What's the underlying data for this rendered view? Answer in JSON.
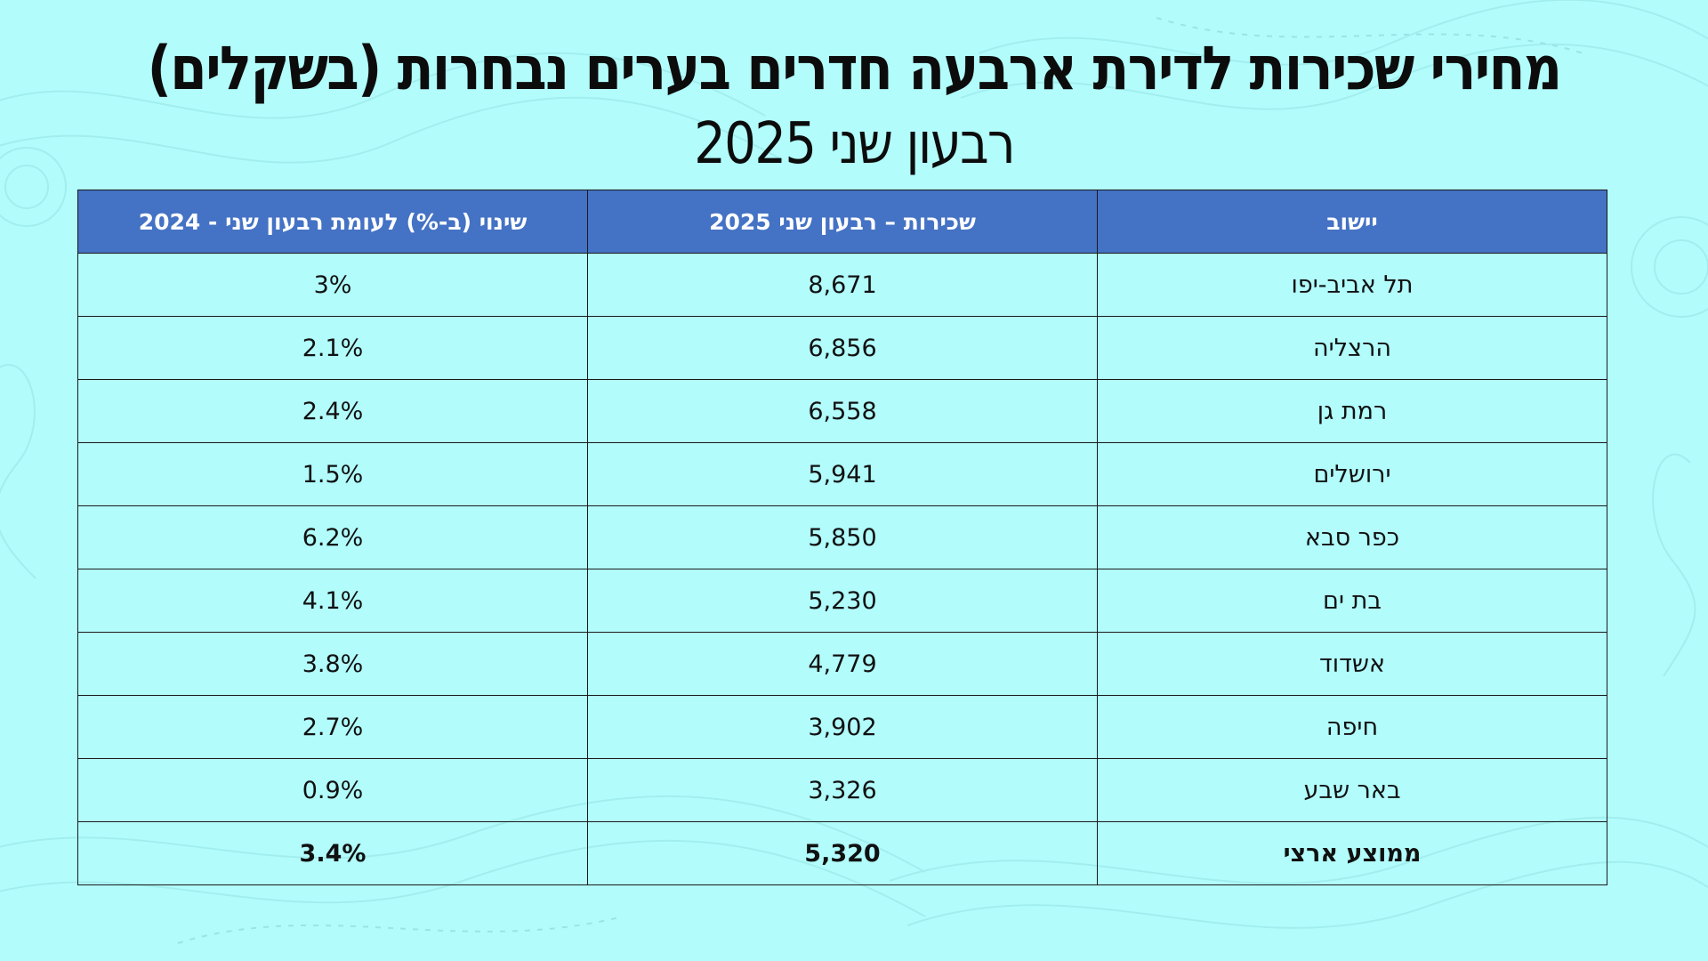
{
  "title": "מחירי שכירות לדירת ארבעה חדרים בערים נבחרות (בשקלים)",
  "subtitle": "רבעון שני 2025",
  "table": {
    "headers": {
      "city": "יישוב",
      "rent": "שכירות – רבעון שני 2025",
      "change": "שינוי (ב-%) לעומת רבעון שני - 2024"
    },
    "rows": [
      {
        "city": "תל אביב-יפו",
        "rent": "8,671",
        "change": "3%"
      },
      {
        "city": "הרצליה",
        "rent": "6,856",
        "change": "2.1%"
      },
      {
        "city": "רמת גן",
        "rent": "6,558",
        "change": "2.4%"
      },
      {
        "city": "ירושלים",
        "rent": "5,941",
        "change": "1.5%"
      },
      {
        "city": "כפר סבא",
        "rent": "5,850",
        "change": "6.2%"
      },
      {
        "city": "בת ים",
        "rent": "5,230",
        "change": "4.1%"
      },
      {
        "city": "אשדוד",
        "rent": "4,779",
        "change": "3.8%"
      },
      {
        "city": "חיפה",
        "rent": "3,902",
        "change": "2.7%"
      },
      {
        "city": "באר שבע",
        "rent": "3,326",
        "change": "0.9%"
      },
      {
        "city": "ממוצע ארצי",
        "rent": "5,320",
        "change": "3.4%"
      }
    ]
  },
  "colors": {
    "background": "#b2fcfc",
    "header": "#4472c4",
    "header_text": "#ffffff",
    "text": "#111111"
  }
}
